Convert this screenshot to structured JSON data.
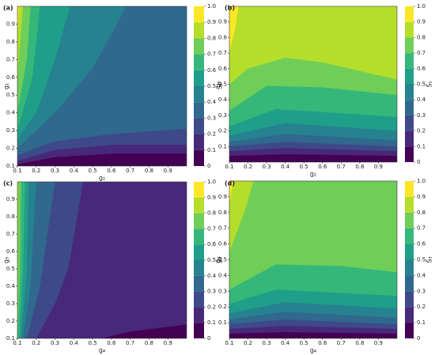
{
  "chart_data": [
    {
      "type": "contour",
      "label": "(a)",
      "xlabel": "g₂",
      "ylabel": "g₁",
      "colorbar_label": "S̃₁",
      "xlim": [
        0.1,
        1.0
      ],
      "ylim": [
        0.1,
        1.0
      ],
      "xticks": [
        0.1,
        0.2,
        0.3,
        0.4,
        0.5,
        0.6,
        0.7,
        0.8,
        0.9
      ],
      "yticks": [
        0.1,
        0.2,
        0.3,
        0.4,
        0.5,
        0.6,
        0.7,
        0.8,
        0.9
      ],
      "colorbar_ticks": [
        0,
        0.1,
        0.2,
        0.3,
        0.4,
        0.5,
        0.6,
        0.7,
        0.8,
        0.9,
        {
          "value": 1,
          "label": "1.0"
        }
      ],
      "colors": [
        "#440154",
        "#482878",
        "#3e4989",
        "#31688e",
        "#26828e",
        "#1f9e89",
        "#35b779",
        "#6ece58",
        "#b5de2b",
        "#fde725"
      ],
      "contours": [
        {
          "level": 0.1,
          "points": [
            [
              0.1,
              0.11
            ],
            [
              0.3,
              0.15
            ],
            [
              0.6,
              0.17
            ],
            [
              1.0,
              0.17
            ]
          ]
        },
        {
          "level": 0.2,
          "points": [
            [
              0.1,
              0.13
            ],
            [
              0.3,
              0.19
            ],
            [
              0.6,
              0.22
            ],
            [
              1.0,
              0.22
            ]
          ]
        },
        {
          "level": 0.3,
          "points": [
            [
              0.1,
              0.16
            ],
            [
              0.3,
              0.24
            ],
            [
              0.6,
              0.28
            ],
            [
              1.0,
              0.31
            ]
          ]
        },
        {
          "level": 0.4,
          "points": [
            [
              0.1,
              0.2
            ],
            [
              0.3,
              0.4
            ],
            [
              0.5,
              0.65
            ],
            [
              0.68,
              1.0
            ]
          ]
        },
        {
          "level": 0.5,
          "points": [
            [
              0.1,
              0.25
            ],
            [
              0.2,
              0.4
            ],
            [
              0.3,
              0.7
            ],
            [
              0.38,
              1.0
            ]
          ]
        },
        {
          "level": 0.6,
          "points": [
            [
              0.1,
              0.3
            ],
            [
              0.18,
              0.6
            ],
            [
              0.22,
              1.0
            ]
          ]
        },
        {
          "level": 0.7,
          "points": [
            [
              0.1,
              0.4
            ],
            [
              0.15,
              0.7
            ],
            [
              0.17,
              1.0
            ]
          ]
        },
        {
          "level": 0.8,
          "points": [
            [
              0.1,
              0.6
            ],
            [
              0.13,
              1.0
            ]
          ]
        },
        {
          "level": 0.9,
          "points": [
            [
              0.1,
              0.85
            ],
            [
              0.11,
              1.0
            ]
          ]
        }
      ]
    },
    {
      "type": "contour",
      "label": "(b)",
      "xlabel": "g₂",
      "ylabel": "g₁",
      "colorbar_label": "S̄₁",
      "xlim": [
        0.1,
        1.0
      ],
      "ylim": [
        0,
        1.0
      ],
      "xticks": [
        0.1,
        0.2,
        0.3,
        0.4,
        0.5,
        0.6,
        0.7,
        0.8,
        0.9
      ],
      "yticks": [
        0.1,
        0.2,
        0.3,
        0.4,
        0.5,
        0.6,
        0.7,
        0.8,
        0.9
      ],
      "colorbar_ticks": [
        0,
        0.1,
        0.2,
        0.3,
        0.4,
        0.5,
        0.6,
        0.7,
        0.8,
        0.9,
        {
          "value": 1,
          "label": "1.0"
        }
      ],
      "colors": [
        "#440154",
        "#482878",
        "#3e4989",
        "#31688e",
        "#26828e",
        "#1f9e89",
        "#35b779",
        "#6ece58",
        "#b5de2b",
        "#fde725"
      ],
      "contours": [
        {
          "level": 0.1,
          "points": [
            [
              0.1,
              0.04
            ],
            [
              0.4,
              0.05
            ],
            [
              1.0,
              0.04
            ]
          ]
        },
        {
          "level": 0.2,
          "points": [
            [
              0.1,
              0.07
            ],
            [
              0.4,
              0.09
            ],
            [
              1.0,
              0.07
            ]
          ]
        },
        {
          "level": 0.3,
          "points": [
            [
              0.1,
              0.1
            ],
            [
              0.4,
              0.13
            ],
            [
              1.0,
              0.1
            ]
          ]
        },
        {
          "level": 0.4,
          "points": [
            [
              0.1,
              0.13
            ],
            [
              0.4,
              0.18
            ],
            [
              1.0,
              0.14
            ]
          ]
        },
        {
          "level": 0.5,
          "points": [
            [
              0.1,
              0.17
            ],
            [
              0.4,
              0.25
            ],
            [
              1.0,
              0.2
            ]
          ]
        },
        {
          "level": 0.6,
          "points": [
            [
              0.1,
              0.23
            ],
            [
              0.35,
              0.34
            ],
            [
              1.0,
              0.29
            ]
          ]
        },
        {
          "level": 0.7,
          "points": [
            [
              0.1,
              0.33
            ],
            [
              0.3,
              0.49
            ],
            [
              0.6,
              0.48
            ],
            [
              1.0,
              0.43
            ]
          ]
        },
        {
          "level": 0.8,
          "points": [
            [
              0.1,
              0.5
            ],
            [
              0.2,
              0.6
            ],
            [
              0.4,
              0.67
            ],
            [
              0.6,
              0.64
            ],
            [
              1.0,
              0.53
            ]
          ]
        },
        {
          "level": 0.9,
          "points": [
            [
              0.1,
              0.7
            ],
            [
              0.13,
              0.85
            ],
            [
              0.15,
              1.0
            ]
          ]
        }
      ]
    },
    {
      "type": "contour",
      "label": "(c)",
      "xlabel": "g₄",
      "ylabel": "g₃",
      "colorbar_label": "S̃₃",
      "xlim": [
        0.1,
        1.0
      ],
      "ylim": [
        0.1,
        1.0
      ],
      "xticks": [
        0.1,
        0.2,
        0.3,
        0.4,
        0.5,
        0.6,
        0.7,
        0.8,
        0.9
      ],
      "yticks": [
        0.1,
        0.2,
        0.3,
        0.4,
        0.5,
        0.6,
        0.7,
        0.8,
        0.9
      ],
      "colorbar_ticks": [
        0,
        0.1,
        0.2,
        0.3,
        0.4,
        0.5,
        0.6,
        0.7,
        0.8,
        0.9,
        {
          "value": 1,
          "label": "1.0"
        }
      ],
      "colors": [
        "#440154",
        "#482878",
        "#3e4989",
        "#31688e",
        "#26828e",
        "#1f9e89",
        "#35b779",
        "#6ece58",
        "#b5de2b",
        "#fde725"
      ],
      "contours": [
        {
          "level": 0.1,
          "points": [
            [
              0.55,
              0.1
            ],
            [
              0.7,
              0.14
            ],
            [
              1.0,
              0.18
            ]
          ]
        },
        {
          "level": 0.2,
          "points": [
            [
              0.2,
              0.1
            ],
            [
              0.3,
              0.3
            ],
            [
              0.37,
              0.5
            ],
            [
              0.45,
              1.0
            ]
          ]
        },
        {
          "level": 0.3,
          "points": [
            [
              0.15,
              0.1
            ],
            [
              0.22,
              0.4
            ],
            [
              0.3,
              1.0
            ]
          ]
        },
        {
          "level": 0.4,
          "points": [
            [
              0.13,
              0.1
            ],
            [
              0.17,
              0.4
            ],
            [
              0.2,
              1.0
            ]
          ]
        },
        {
          "level": 0.5,
          "points": [
            [
              0.12,
              0.1
            ],
            [
              0.15,
              0.5
            ],
            [
              0.16,
              1.0
            ]
          ]
        },
        {
          "level": 0.6,
          "points": [
            [
              0.11,
              0.1
            ],
            [
              0.13,
              0.5
            ],
            [
              0.14,
              1.0
            ]
          ]
        },
        {
          "level": 0.7,
          "points": [
            [
              0.1,
              0.1
            ],
            [
              0.115,
              0.5
            ],
            [
              0.12,
              1.0
            ]
          ]
        },
        {
          "level": 0.8,
          "points": [
            [
              0.1,
              0.3
            ],
            [
              0.105,
              1.0
            ]
          ]
        }
      ]
    },
    {
      "type": "contour",
      "label": "(d)",
      "xlabel": "g₄",
      "ylabel": "g₃",
      "colorbar_label": "S̄₃",
      "xlim": [
        0.1,
        1.0
      ],
      "ylim": [
        0,
        1.0
      ],
      "xticks": [
        0.1,
        0.2,
        0.3,
        0.4,
        0.5,
        0.6,
        0.7,
        0.8,
        0.9
      ],
      "yticks": [
        0.1,
        0.2,
        0.3,
        0.4,
        0.5,
        0.6,
        0.7,
        0.8,
        0.9
      ],
      "colorbar_ticks": [
        0,
        0.1,
        0.2,
        0.3,
        0.4,
        0.5,
        0.6,
        0.7,
        0.8,
        0.9,
        {
          "value": 1,
          "label": "1.0"
        }
      ],
      "colors": [
        "#440154",
        "#482878",
        "#3e4989",
        "#31688e",
        "#26828e",
        "#1f9e89",
        "#35b779",
        "#6ece58",
        "#b5de2b",
        "#fde725"
      ],
      "contours": [
        {
          "level": 0.1,
          "points": [
            [
              0.1,
              0.03
            ],
            [
              0.4,
              0.04
            ],
            [
              1.0,
              0.03
            ]
          ]
        },
        {
          "level": 0.2,
          "points": [
            [
              0.1,
              0.06
            ],
            [
              0.4,
              0.08
            ],
            [
              1.0,
              0.06
            ]
          ]
        },
        {
          "level": 0.3,
          "points": [
            [
              0.1,
              0.09
            ],
            [
              0.4,
              0.12
            ],
            [
              1.0,
              0.09
            ]
          ]
        },
        {
          "level": 0.4,
          "points": [
            [
              0.1,
              0.12
            ],
            [
              0.4,
              0.17
            ],
            [
              1.0,
              0.13
            ]
          ]
        },
        {
          "level": 0.5,
          "points": [
            [
              0.1,
              0.16
            ],
            [
              0.4,
              0.23
            ],
            [
              1.0,
              0.19
            ]
          ]
        },
        {
          "level": 0.6,
          "points": [
            [
              0.1,
              0.22
            ],
            [
              0.35,
              0.31
            ],
            [
              1.0,
              0.27
            ]
          ]
        },
        {
          "level": 0.7,
          "points": [
            [
              0.1,
              0.31
            ],
            [
              0.35,
              0.47
            ],
            [
              0.7,
              0.46
            ],
            [
              1.0,
              0.42
            ]
          ]
        },
        {
          "level": 0.8,
          "points": [
            [
              0.1,
              0.55
            ],
            [
              0.18,
              0.8
            ],
            [
              0.23,
              1.0
            ]
          ]
        },
        {
          "level": 0.9,
          "points": [
            [
              0.1,
              0.85
            ],
            [
              0.12,
              1.0
            ]
          ]
        }
      ]
    }
  ]
}
